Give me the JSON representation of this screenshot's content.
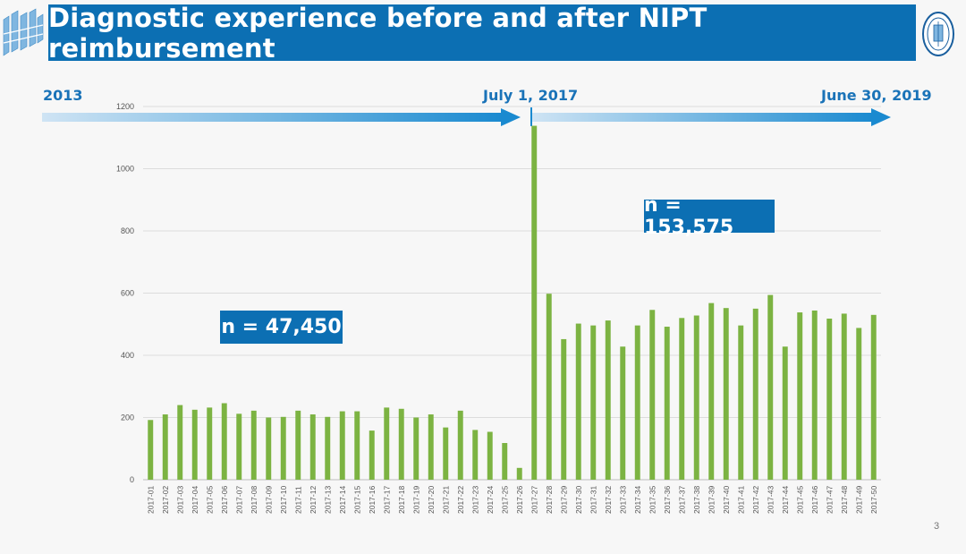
{
  "slide": {
    "title": "Diagnostic experience before and after NIPT reimbursement",
    "page_number": "3"
  },
  "timeline": {
    "start_label": "2013",
    "mid_label": "July 1, 2017",
    "end_label": "June 30, 2019"
  },
  "annotations": {
    "pre_count": "n = 47,450",
    "post_count": "n = 153,575"
  },
  "colors": {
    "banner": "#0c6fb3",
    "bar": "#7cb342",
    "timeline_arrow": "#1a8ad0"
  },
  "chart_data": {
    "type": "bar",
    "categories": [
      "2017-01",
      "2017-02",
      "2017-03",
      "2017-04",
      "2017-05",
      "2017-06",
      "2017-07",
      "2017-08",
      "2017-09",
      "2017-10",
      "2017-11",
      "2017-12",
      "2017-13",
      "2017-14",
      "2017-15",
      "2017-16",
      "2017-17",
      "2017-18",
      "2017-19",
      "2017-20",
      "2017-21",
      "2017-22",
      "2017-23",
      "2017-24",
      "2017-25",
      "2017-26",
      "2017-27",
      "2017-28",
      "2017-29",
      "2017-30",
      "2017-31",
      "2017-32",
      "2017-33",
      "2017-34",
      "2017-35",
      "2017-36",
      "2017-37",
      "2017-38",
      "2017-39",
      "2017-40",
      "2017-41",
      "2017-42",
      "2017-43",
      "2017-44",
      "2017-45",
      "2017-46",
      "2017-47",
      "2017-48",
      "2017-49",
      "2017-50"
    ],
    "values": [
      192,
      210,
      240,
      225,
      232,
      246,
      212,
      222,
      200,
      202,
      222,
      210,
      202,
      220,
      220,
      158,
      232,
      228,
      200,
      210,
      168,
      222,
      160,
      154,
      118,
      38,
      1138,
      598,
      452,
      502,
      496,
      512,
      428,
      496,
      546,
      492,
      520,
      528,
      568,
      552,
      496,
      550,
      594,
      428,
      538,
      544,
      518,
      534,
      488,
      530
    ],
    "ylim": [
      0,
      1200
    ],
    "yticks": [
      0,
      200,
      400,
      600,
      800,
      1000,
      1200
    ],
    "grid": true,
    "title": "",
    "xlabel": "",
    "ylabel": ""
  }
}
